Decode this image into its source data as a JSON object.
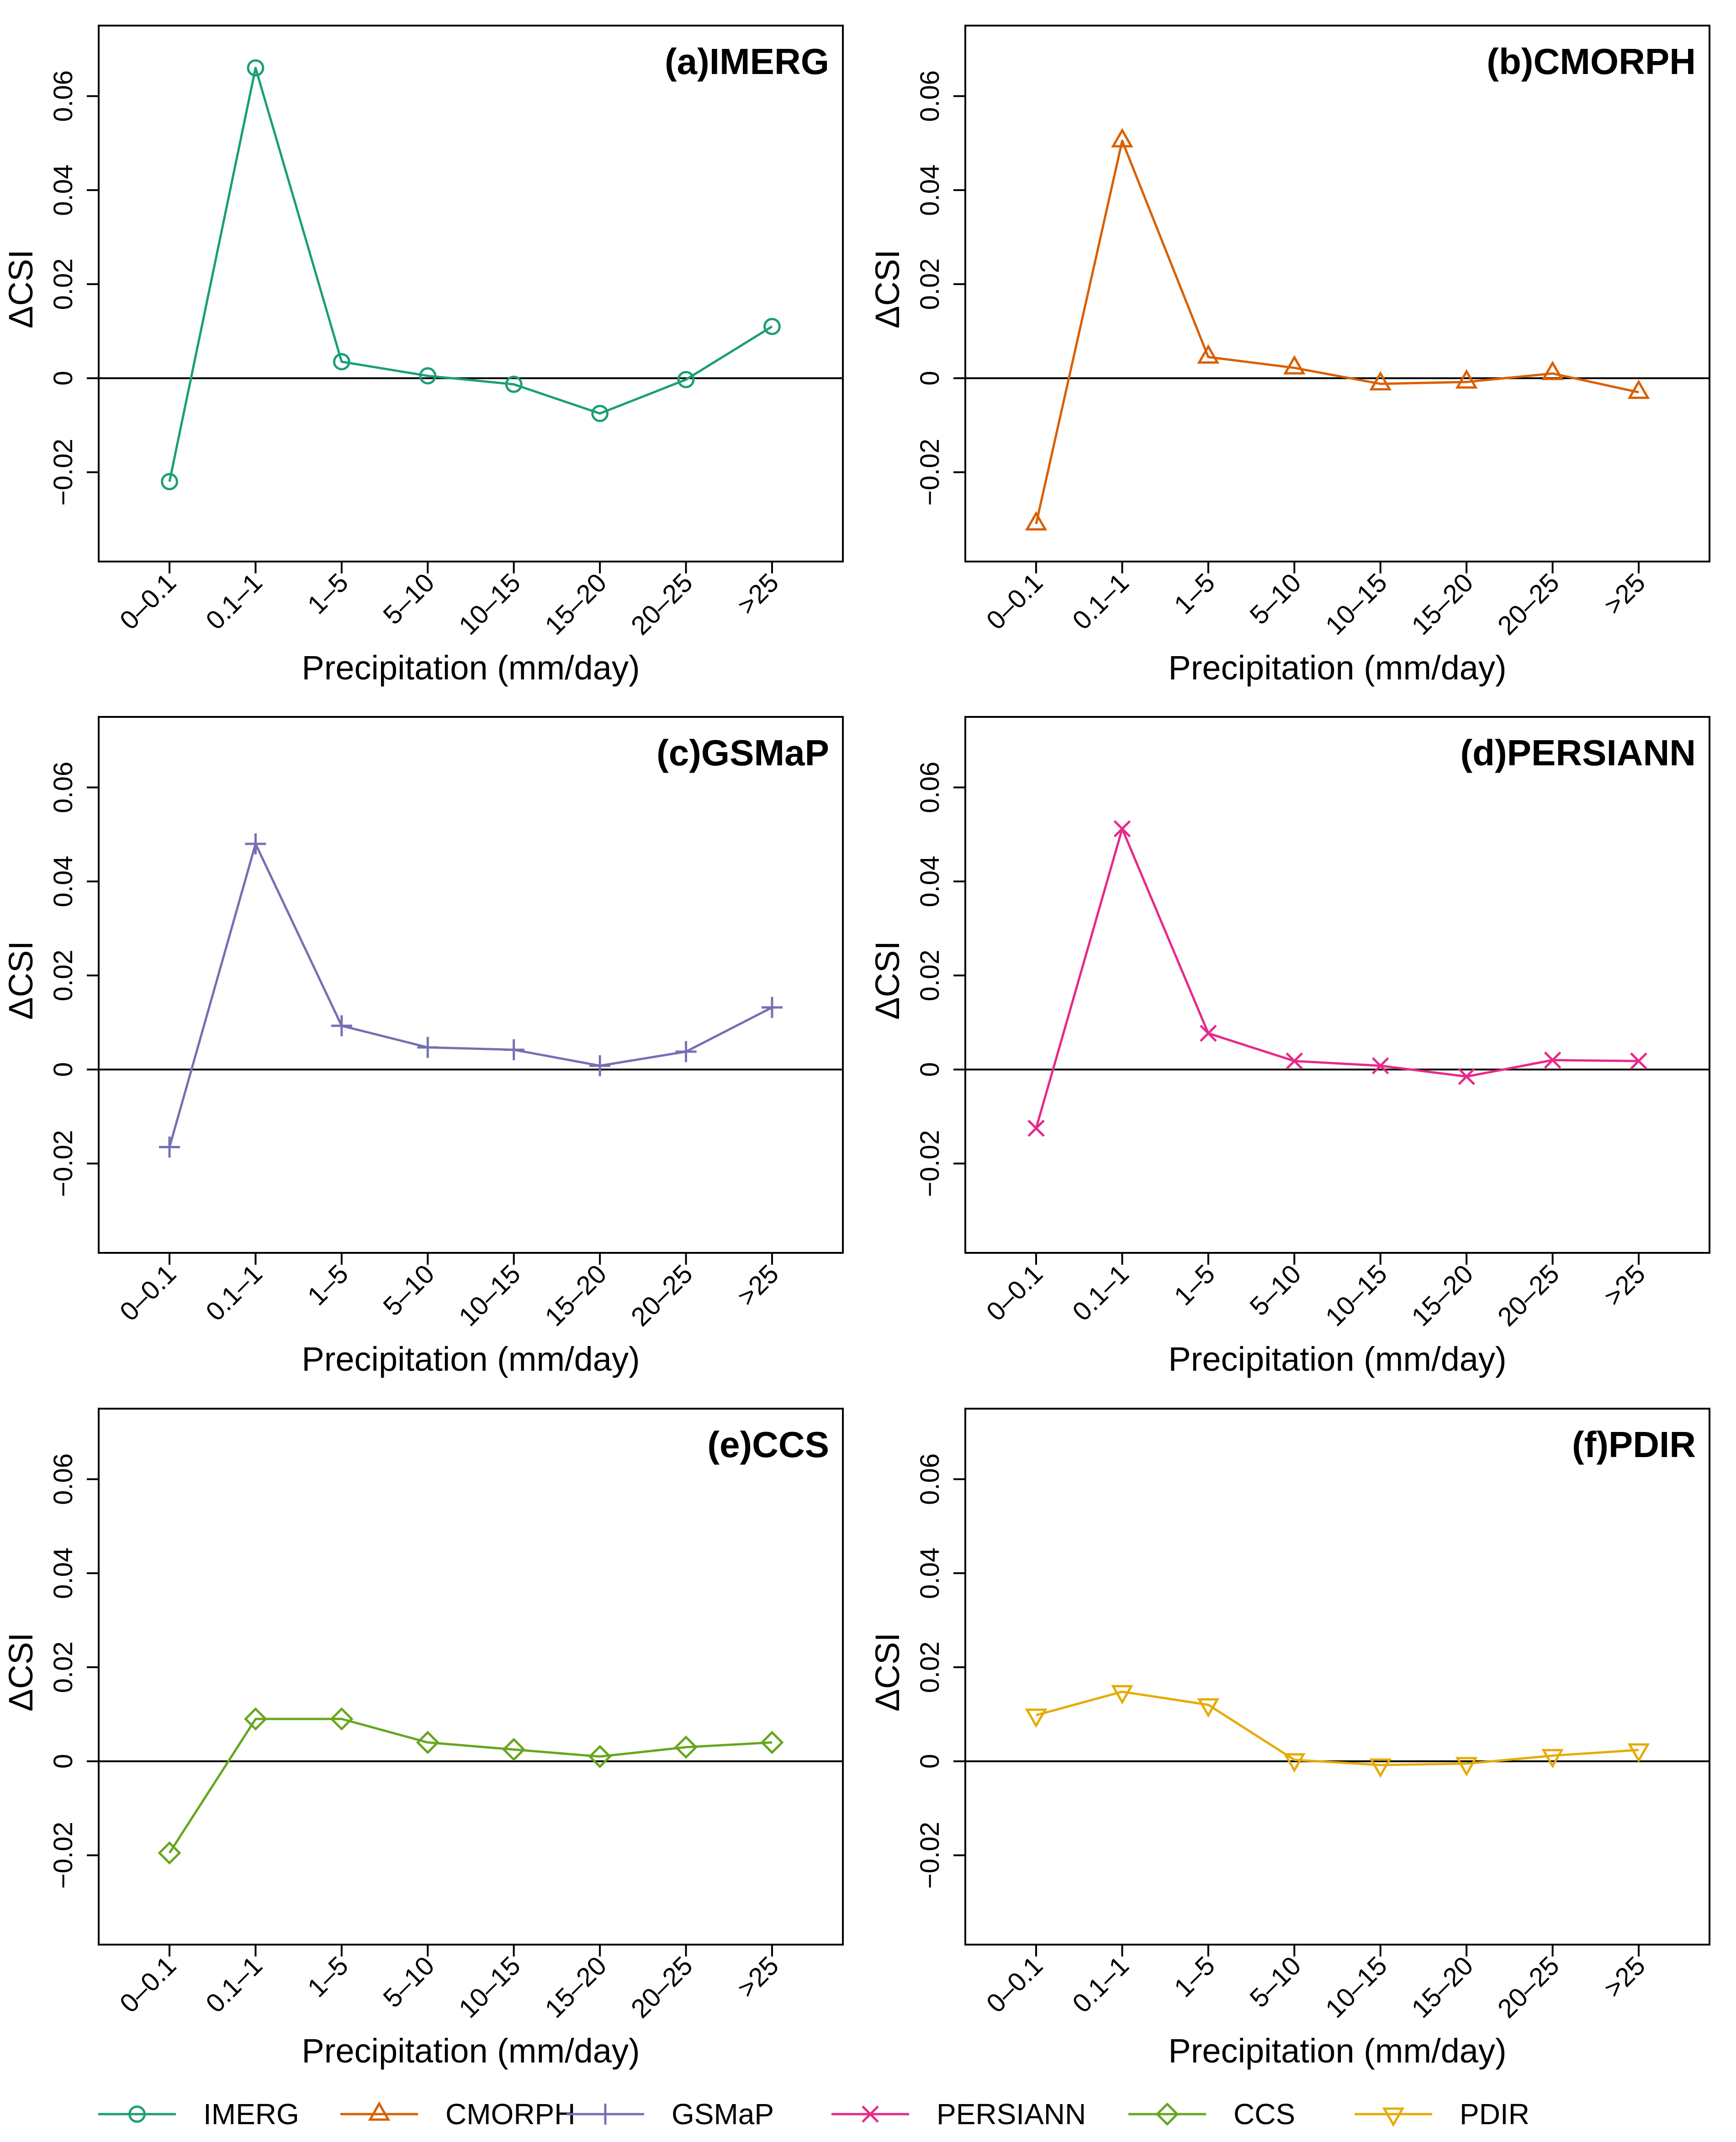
{
  "chart_data": [
    {
      "type": "line",
      "title": "(a)IMERG",
      "xlabel": "Precipitation (mm/day)",
      "ylabel": "ΔCSI",
      "categories": [
        "0–0.1",
        "0.1–1",
        "1–5",
        "5–10",
        "10–15",
        "15–20",
        "20–25",
        ">25"
      ],
      "ylim": [
        -0.039,
        0.075
      ],
      "yticks": [
        "−0.02",
        "0",
        "0.02",
        "0.04",
        "0.06"
      ],
      "grid": false,
      "series": [
        {
          "name": "IMERG",
          "marker": "circle",
          "color": "#1b9e77",
          "values": [
            -0.022,
            0.066,
            0.0035,
            0.0005,
            -0.0013,
            -0.0075,
            -0.0003,
            0.011
          ]
        }
      ]
    },
    {
      "type": "line",
      "title": "(b)CMORPH",
      "xlabel": "Precipitation (mm/day)",
      "ylabel": "ΔCSI",
      "categories": [
        "0–0.1",
        "0.1–1",
        "1–5",
        "5–10",
        "10–15",
        "15–20",
        "20–25",
        ">25"
      ],
      "ylim": [
        -0.039,
        0.075
      ],
      "yticks": [
        "−0.02",
        "0",
        "0.02",
        "0.04",
        "0.06"
      ],
      "grid": false,
      "series": [
        {
          "name": "CMORPH",
          "marker": "triangle-up",
          "color": "#d95f02",
          "values": [
            -0.031,
            0.0505,
            0.0045,
            0.0022,
            -0.0012,
            -0.0008,
            0.001,
            -0.003
          ]
        }
      ]
    },
    {
      "type": "line",
      "title": "(c)GSMaP",
      "xlabel": "Precipitation (mm/day)",
      "ylabel": "ΔCSI",
      "categories": [
        "0–0.1",
        "0.1–1",
        "1–5",
        "5–10",
        "10–15",
        "15–20",
        "20–25",
        ">25"
      ],
      "ylim": [
        -0.039,
        0.075
      ],
      "yticks": [
        "−0.02",
        "0",
        "0.02",
        "0.04",
        "0.06"
      ],
      "grid": false,
      "series": [
        {
          "name": "GSMaP",
          "marker": "plus",
          "color": "#7570b3",
          "values": [
            -0.0165,
            0.048,
            0.0093,
            0.0047,
            0.0042,
            0.0008,
            0.0038,
            0.0132
          ]
        }
      ]
    },
    {
      "type": "line",
      "title": "(d)PERSIANN",
      "xlabel": "Precipitation (mm/day)",
      "ylabel": "ΔCSI",
      "categories": [
        "0–0.1",
        "0.1–1",
        "1–5",
        "5–10",
        "10–15",
        "15–20",
        "20–25",
        ">25"
      ],
      "ylim": [
        -0.039,
        0.075
      ],
      "yticks": [
        "−0.02",
        "0",
        "0.02",
        "0.04",
        "0.06"
      ],
      "grid": false,
      "series": [
        {
          "name": "PERSIANN",
          "marker": "cross",
          "color": "#e7298a",
          "values": [
            -0.0125,
            0.0512,
            0.0077,
            0.0018,
            0.0008,
            -0.0015,
            0.002,
            0.0018
          ]
        }
      ]
    },
    {
      "type": "line",
      "title": "(e)CCS",
      "xlabel": "Precipitation (mm/day)",
      "ylabel": "ΔCSI",
      "categories": [
        "0–0.1",
        "0.1–1",
        "1–5",
        "5–10",
        "10–15",
        "15–20",
        "20–25",
        ">25"
      ],
      "ylim": [
        -0.039,
        0.075
      ],
      "yticks": [
        "−0.02",
        "0",
        "0.02",
        "0.04",
        "0.06"
      ],
      "grid": false,
      "series": [
        {
          "name": "CCS",
          "marker": "diamond",
          "color": "#66a61e",
          "values": [
            -0.0195,
            0.009,
            0.009,
            0.004,
            0.0025,
            0.001,
            0.003,
            0.004
          ]
        }
      ]
    },
    {
      "type": "line",
      "title": "(f)PDIR",
      "xlabel": "Precipitation (mm/day)",
      "ylabel": "ΔCSI",
      "categories": [
        "0–0.1",
        "0.1–1",
        "1–5",
        "5–10",
        "10–15",
        "15–20",
        "20–25",
        ">25"
      ],
      "ylim": [
        -0.039,
        0.075
      ],
      "yticks": [
        "−0.02",
        "0",
        "0.02",
        "0.04",
        "0.06"
      ],
      "grid": false,
      "series": [
        {
          "name": "PDIR",
          "marker": "triangle-down",
          "color": "#e6ab02",
          "values": [
            0.0098,
            0.0148,
            0.012,
            0.0003,
            -0.0008,
            -0.0005,
            0.0012,
            0.0024
          ]
        }
      ]
    }
  ],
  "legend": {
    "placement": "bottom",
    "items": [
      {
        "label": "IMERG",
        "marker": "circle",
        "color": "#1b9e77"
      },
      {
        "label": "CMORPH",
        "marker": "triangle-up",
        "color": "#d95f02"
      },
      {
        "label": "GSMaP",
        "marker": "plus",
        "color": "#7570b3"
      },
      {
        "label": "PERSIANN",
        "marker": "cross",
        "color": "#e7298a"
      },
      {
        "label": "CCS",
        "marker": "diamond",
        "color": "#66a61e"
      },
      {
        "label": "PDIR",
        "marker": "triangle-down",
        "color": "#e6ab02"
      }
    ]
  }
}
